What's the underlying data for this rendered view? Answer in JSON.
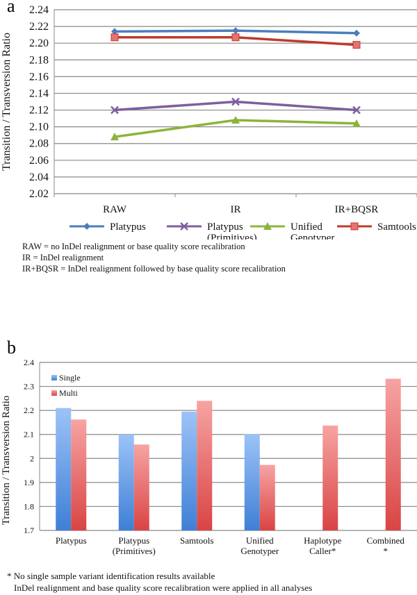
{
  "chart_data": [
    {
      "panel": "a",
      "type": "line",
      "title": "",
      "ylabel": "Transition / Transversion Ratio",
      "xlabel": "",
      "ylim": [
        2.02,
        2.24
      ],
      "yticks": [
        "2.02",
        "2.04",
        "2.06",
        "2.08",
        "2.10",
        "2.12",
        "2.14",
        "2.16",
        "2.18",
        "2.20",
        "2.22",
        "2.24"
      ],
      "categories": [
        "RAW",
        "IR",
        "IR+BQSR"
      ],
      "grid": true,
      "legend_placement": "bottom",
      "series": [
        {
          "name": "Platypus",
          "values": [
            2.214,
            2.215,
            2.212
          ],
          "color": "#4a7ebb",
          "marker": "diamond"
        },
        {
          "name": "Platypus (Primitives)",
          "name_lines": [
            "Platypus",
            "(Primitives)"
          ],
          "values": [
            2.12,
            2.13,
            2.12
          ],
          "color": "#7d5fa0",
          "marker": "x"
        },
        {
          "name": "Unified Genotyper",
          "name_lines": [
            "Unified",
            "Genotyper"
          ],
          "values": [
            2.088,
            2.108,
            2.104
          ],
          "color": "#8cb43c",
          "marker": "triangle"
        },
        {
          "name": "Samtools",
          "values": [
            2.207,
            2.207,
            2.198
          ],
          "color": "#c0392b",
          "marker": "square"
        }
      ],
      "notes": [
        "RAW = no InDel realignment or base quality score recalibration",
        "IR = InDel realignment",
        "IR+BQSR = InDel realignment followed by base quality score recalibration"
      ]
    },
    {
      "panel": "b",
      "type": "bar",
      "title": "",
      "ylabel": "Transition / Transversion Ratio",
      "xlabel": "",
      "ylim": [
        1.7,
        2.4
      ],
      "yticks": [
        "1.7",
        "1.8",
        "1.9",
        "2",
        "2.1",
        "2.2",
        "2.3",
        "2.4"
      ],
      "categories": [
        "Platypus",
        "Platypus (Primitives)",
        "Samtools",
        "Unified Genotyper",
        "Haplotype Caller*",
        "Combined *"
      ],
      "category_lines": [
        [
          "Platypus"
        ],
        [
          "Platypus",
          "(Primitives)"
        ],
        [
          "Samtools"
        ],
        [
          "Unified",
          "Genotyper"
        ],
        [
          "Haplotype",
          "Caller*"
        ],
        [
          "Combined",
          "*"
        ]
      ],
      "grid": true,
      "legend_placement": "top-left",
      "series": [
        {
          "name": "Single",
          "values": [
            2.21,
            2.1,
            2.195,
            2.102,
            null,
            null
          ],
          "color": "#6a9de6"
        },
        {
          "name": "Multi",
          "values": [
            2.162,
            2.058,
            2.24,
            1.973,
            2.137,
            2.332
          ],
          "color": "#e86a6a"
        }
      ],
      "footnotes": [
        "* No single sample variant identification results available",
        "InDel realignment and base quality score recalibration were applied in all analyses"
      ]
    }
  ],
  "panel_labels": [
    "a",
    "b"
  ]
}
